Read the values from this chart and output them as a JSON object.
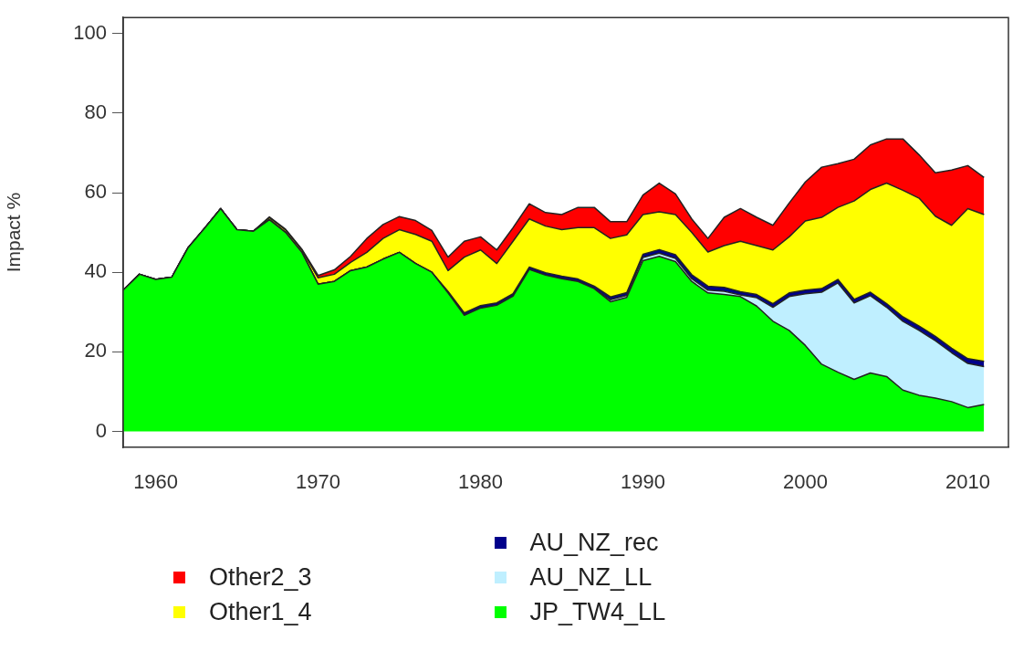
{
  "chart_data": {
    "type": "area",
    "stacked": true,
    "ylabel": "Impact %",
    "legend": "bottom",
    "grid": false,
    "xlim": [
      1958,
      2012.5
    ],
    "xticks": [
      1960,
      1970,
      1980,
      1990,
      2000,
      2010
    ],
    "ylim": [
      -4,
      104
    ],
    "yticks": [
      0,
      20,
      40,
      60,
      80,
      100
    ],
    "x": [
      1958,
      1959,
      1960,
      1961,
      1962,
      1963,
      1964,
      1965,
      1966,
      1967,
      1968,
      1969,
      1970,
      1971,
      1972,
      1973,
      1974,
      1975,
      1976,
      1977,
      1978,
      1979,
      1980,
      1981,
      1982,
      1983,
      1984,
      1985,
      1986,
      1987,
      1988,
      1989,
      1990,
      1991,
      1992,
      1993,
      1994,
      1995,
      1996,
      1997,
      1998,
      1999,
      2000,
      2001,
      2002,
      2003,
      2004,
      2005,
      2006,
      2007,
      2008,
      2009,
      2010,
      2011
    ],
    "series": [
      {
        "name": "JP_TW4_LL",
        "color": "#00ff00",
        "values": [
          35.5,
          39.5,
          38.2,
          38.8,
          46.2,
          51,
          56,
          50.7,
          50.3,
          53.2,
          50,
          45,
          37,
          37.7,
          40.4,
          41.3,
          43.3,
          45,
          42.2,
          40,
          34.8,
          29.2,
          31,
          31.7,
          34,
          40.7,
          39.3,
          38.4,
          37.7,
          35.9,
          32.6,
          33.7,
          42.9,
          44,
          42.7,
          37.7,
          34.8,
          34.4,
          33.9,
          31.5,
          27.7,
          25.4,
          21.6,
          16.9,
          14.9,
          13.1,
          14.7,
          13.8,
          10.4,
          9.1,
          8.4,
          7.5,
          6,
          6.8
        ]
      },
      {
        "name": "AU_NZ_LL",
        "color": "#bfefff",
        "values": [
          0,
          0,
          0,
          0,
          0,
          0,
          0,
          0,
          0,
          0,
          0,
          0,
          0,
          0,
          0,
          0,
          0,
          0,
          0,
          0,
          0,
          0,
          0,
          0,
          0,
          0,
          0,
          0,
          0,
          0,
          0.5,
          0.5,
          0.8,
          0.8,
          0.8,
          0.7,
          0.7,
          0.8,
          0.4,
          2.1,
          3.5,
          8.5,
          13,
          18.1,
          22.4,
          19.2,
          19.4,
          17.4,
          17.3,
          16.3,
          14.4,
          12.3,
          11.1,
          9.5
        ]
      },
      {
        "name": "AU_NZ_rec",
        "color": "#00008b",
        "values": [
          0,
          0,
          0,
          0,
          0,
          0,
          0,
          0,
          0,
          0,
          0,
          0,
          0,
          0,
          0,
          0,
          0,
          0,
          0,
          0,
          0.4,
          0.6,
          0.6,
          0.6,
          0.6,
          0.6,
          0.6,
          0.6,
          0.6,
          0.6,
          0.7,
          0.7,
          0.8,
          0.9,
          0.9,
          1,
          1,
          1,
          0.8,
          0.8,
          0.9,
          0.9,
          0.9,
          0.9,
          0.9,
          0.9,
          0.9,
          0.9,
          1.1,
          1.1,
          1.1,
          1.1,
          1.2,
          1.3
        ]
      },
      {
        "name": "Other1_4",
        "color": "#ffff00",
        "values": [
          0,
          0,
          0,
          0,
          0,
          0,
          0,
          0,
          0,
          0.5,
          0.6,
          0.6,
          1.6,
          1.8,
          2.1,
          3.7,
          5.2,
          5.7,
          7.3,
          7.8,
          5.2,
          14,
          14,
          9.9,
          13.2,
          12.1,
          11.7,
          11.7,
          12.9,
          14.7,
          14.7,
          14.5,
          10,
          9.5,
          10.1,
          10.6,
          8.6,
          10.5,
          12.7,
          12.3,
          13.5,
          14.1,
          17.4,
          17.9,
          18.1,
          24.7,
          25.8,
          30.3,
          31.8,
          32.1,
          30.2,
          30.9,
          37.7,
          36.9
        ]
      },
      {
        "name": "Other2_3",
        "color": "#ff0000",
        "values": [
          0,
          0,
          0,
          0,
          0,
          0,
          0,
          0,
          0,
          0.2,
          0.2,
          0.2,
          0.6,
          1.1,
          1.5,
          3.5,
          3.5,
          3.3,
          3.5,
          2.7,
          3.4,
          4,
          3.3,
          3.4,
          3.4,
          3.8,
          3.4,
          3.8,
          5.1,
          5.1,
          4.2,
          3.3,
          4.9,
          7.2,
          5.2,
          3.4,
          3.4,
          7.1,
          8.2,
          7.1,
          6.2,
          8.5,
          9.8,
          12.6,
          11,
          10.5,
          11.2,
          11.1,
          12.9,
          10.9,
          10.9,
          13.9,
          10.8,
          9.3
        ]
      }
    ]
  }
}
